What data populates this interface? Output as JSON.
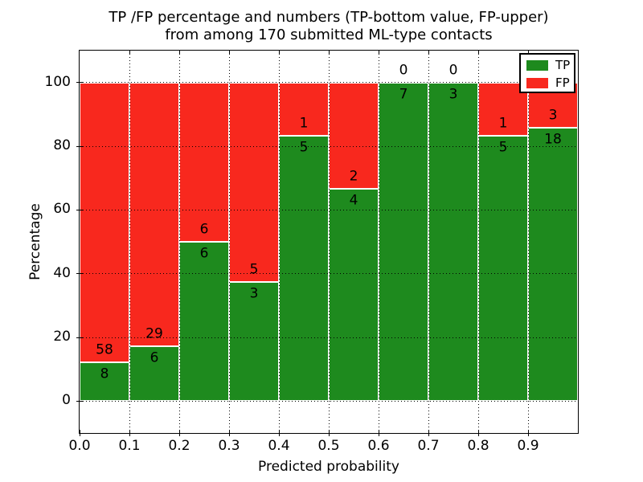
{
  "figure": {
    "title_line1": "TP /FP percentage and numbers (TP-bottom value, FP-upper)",
    "title_line2": "from among 170 submitted ML-type contacts"
  },
  "axes": {
    "xlabel": "Predicted probability",
    "ylabel": "Percentage"
  },
  "legend": {
    "position": "upper right",
    "entries": [
      {
        "label": "TP",
        "color": "#1e8a1e"
      },
      {
        "label": "FP",
        "color": "#f8281e"
      }
    ]
  },
  "colors": {
    "tp_green": "#1e8a1e",
    "fp_red": "#f8281e",
    "bar_edge": "#ffffff",
    "frame": "#000000",
    "text": "#000000",
    "background": "#ffffff"
  },
  "chart_data": {
    "type": "bar",
    "variant": "stacked-percentage",
    "title": "TP /FP percentage and numbers (TP-bottom value, FP-upper) from among 170 submitted ML-type contacts",
    "xlabel": "Predicted probability",
    "ylabel": "Percentage",
    "xlim": [
      0.0,
      1.0
    ],
    "ylim": [
      -10,
      110
    ],
    "xticks": [
      "0.0",
      "0.1",
      "0.2",
      "0.3",
      "0.4",
      "0.5",
      "0.6",
      "0.7",
      "0.8",
      "0.9"
    ],
    "yticks": [
      0,
      20,
      40,
      60,
      80,
      100
    ],
    "grid": "dotted black, drawn above bars",
    "legend_position": "upper right",
    "total_contacts": 170,
    "bins": [
      [
        0.0,
        0.1
      ],
      [
        0.1,
        0.2
      ],
      [
        0.2,
        0.3
      ],
      [
        0.3,
        0.4
      ],
      [
        0.4,
        0.5
      ],
      [
        0.5,
        0.6
      ],
      [
        0.6,
        0.7
      ],
      [
        0.7,
        0.8
      ],
      [
        0.8,
        0.9
      ],
      [
        0.9,
        1.0
      ]
    ],
    "series": [
      {
        "name": "TP",
        "color": "#1e8a1e",
        "counts": [
          8,
          6,
          6,
          3,
          5,
          4,
          7,
          3,
          5,
          18
        ]
      },
      {
        "name": "FP",
        "color": "#f8281e",
        "counts": [
          58,
          29,
          6,
          5,
          1,
          2,
          0,
          0,
          1,
          3
        ]
      }
    ],
    "tp_percent": [
      12.12,
      17.14,
      50.0,
      37.5,
      83.33,
      66.67,
      100.0,
      100.0,
      83.33,
      85.71
    ]
  }
}
